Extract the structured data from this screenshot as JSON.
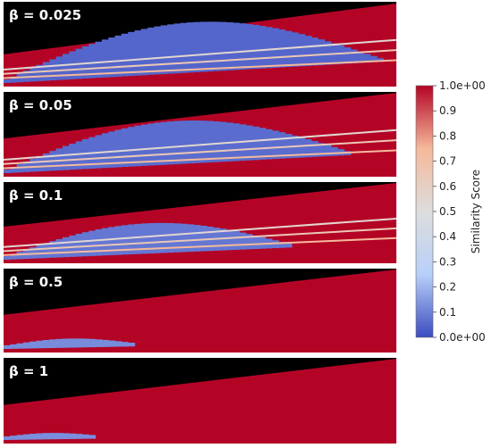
{
  "chart_data": {
    "type": "heatmap",
    "panels": [
      {
        "label": "β = 0.025",
        "beta": 0.025,
        "band_extent": 0.95,
        "band_strength": 1.0
      },
      {
        "label": "β = 0.05",
        "beta": 0.05,
        "band_extent": 0.87,
        "band_strength": 0.85
      },
      {
        "label": "β = 0.1",
        "beta": 0.1,
        "band_extent": 0.72,
        "band_strength": 0.6
      },
      {
        "label": "β = 0.5",
        "beta": 0.5,
        "band_extent": 0.32,
        "band_strength": 0.12
      },
      {
        "label": "β = 1",
        "beta": 1,
        "band_extent": 0.22,
        "band_strength": 0.06
      }
    ],
    "colorbar": {
      "title": "Similarity Score",
      "range": [
        0,
        1
      ],
      "ticks": [
        {
          "value": 1.0,
          "label": "1.0e+00"
        },
        {
          "value": 0.9,
          "label": "0.9"
        },
        {
          "value": 0.8,
          "label": "0.8"
        },
        {
          "value": 0.7,
          "label": "0.7"
        },
        {
          "value": 0.6,
          "label": "0.6"
        },
        {
          "value": 0.5,
          "label": "0.5"
        },
        {
          "value": 0.4,
          "label": "0.4"
        },
        {
          "value": 0.3,
          "label": "0.3"
        },
        {
          "value": 0.2,
          "label": "0.2"
        },
        {
          "value": 0.1,
          "label": "0.1"
        },
        {
          "value": 0.0,
          "label": "0.0e+00"
        }
      ],
      "colormap": [
        "#3b4cc0",
        "#b8d0f9",
        "#dddddd",
        "#f5b99b",
        "#b40426"
      ]
    },
    "colors": {
      "low": "#3b4cc0",
      "high": "#b40426",
      "background": "#000000"
    }
  }
}
